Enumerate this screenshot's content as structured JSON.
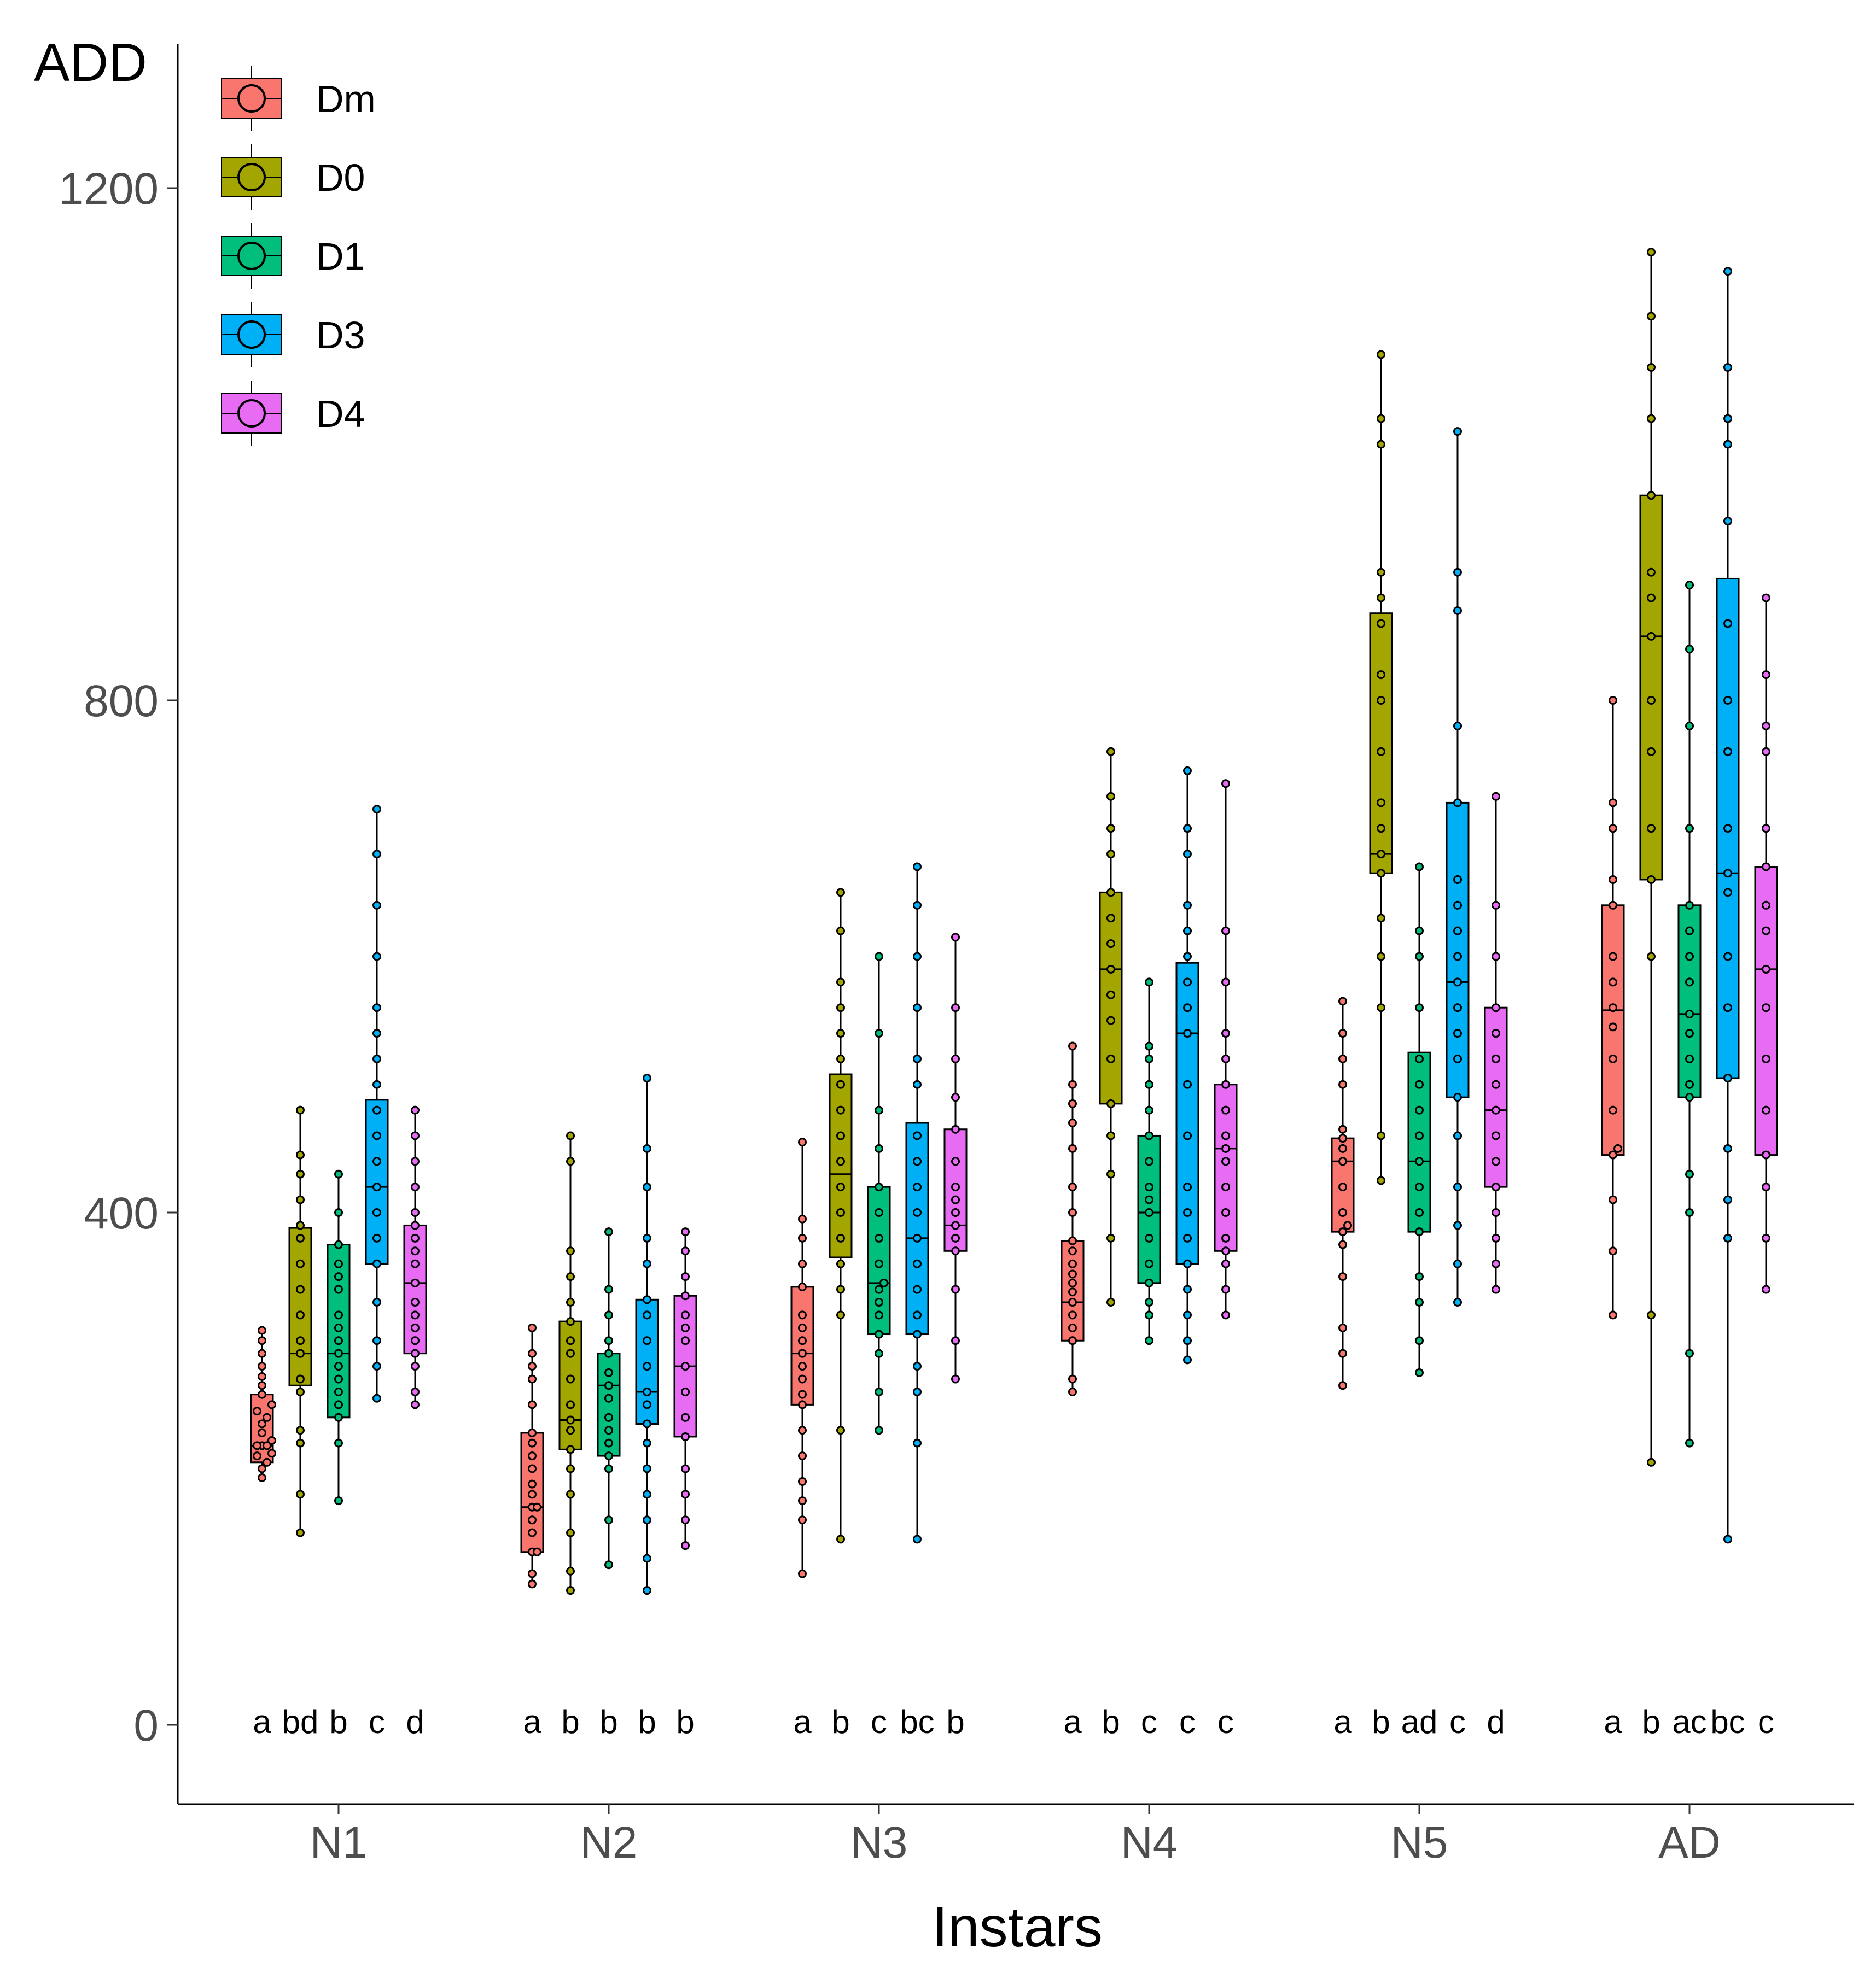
{
  "chart_data": {
    "type": "boxplot",
    "ylabel": "ADD",
    "xlabel": "Instars",
    "ylim": [
      -60,
      1310
    ],
    "yticks": [
      0,
      400,
      800,
      1200
    ],
    "categories": [
      "N1",
      "N2",
      "N3",
      "N4",
      "N5",
      "AD"
    ],
    "legend": {
      "position": "top-left",
      "entries": [
        "Dm",
        "D0",
        "D1",
        "D3",
        "D4"
      ]
    },
    "series": [
      {
        "name": "Dm",
        "color": "#F8766D",
        "boxes": [
          {
            "min": 193,
            "q1": 205,
            "median": 218,
            "q3": 258,
            "max": 308
          },
          {
            "min": 110,
            "q1": 135,
            "median": 170,
            "q3": 228,
            "max": 310
          },
          {
            "min": 118,
            "q1": 250,
            "median": 290,
            "q3": 342,
            "max": 455
          },
          {
            "min": 260,
            "q1": 300,
            "median": 330,
            "q3": 378,
            "max": 530
          },
          {
            "min": 265,
            "q1": 385,
            "median": 440,
            "q3": 458,
            "max": 565
          },
          {
            "min": 320,
            "q1": 445,
            "median": 558,
            "q3": 640,
            "max": 800
          }
        ],
        "points": [
          [
            193,
            200,
            205,
            210,
            212,
            218,
            218,
            218,
            222,
            228,
            235,
            240,
            245,
            250,
            258,
            265,
            272,
            280,
            290,
            300,
            308
          ],
          [
            110,
            118,
            135,
            135,
            150,
            160,
            170,
            170,
            180,
            188,
            200,
            210,
            220,
            228,
            250,
            270,
            280,
            290,
            310
          ],
          [
            118,
            160,
            175,
            190,
            210,
            230,
            250,
            258,
            270,
            280,
            290,
            300,
            310,
            320,
            342,
            360,
            380,
            395,
            455
          ],
          [
            260,
            270,
            300,
            310,
            320,
            330,
            338,
            345,
            352,
            360,
            370,
            378,
            400,
            420,
            450,
            470,
            485,
            500,
            530
          ],
          [
            265,
            290,
            310,
            350,
            375,
            385,
            390,
            400,
            420,
            440,
            450,
            458,
            465,
            500,
            520,
            540,
            565
          ],
          [
            320,
            370,
            410,
            445,
            450,
            480,
            520,
            545,
            560,
            580,
            600,
            640,
            660,
            700,
            720,
            800
          ]
        ]
      },
      {
        "name": "D0",
        "color": "#A3A500",
        "boxes": [
          {
            "min": 150,
            "q1": 265,
            "median": 290,
            "q3": 388,
            "max": 480
          },
          {
            "min": 105,
            "q1": 215,
            "median": 238,
            "q3": 315,
            "max": 460
          },
          {
            "min": 145,
            "q1": 365,
            "median": 430,
            "q3": 508,
            "max": 650
          },
          {
            "min": 330,
            "q1": 485,
            "median": 590,
            "q3": 650,
            "max": 760
          },
          {
            "min": 425,
            "q1": 665,
            "median": 680,
            "q3": 868,
            "max": 1070
          },
          {
            "min": 205,
            "q1": 660,
            "median": 850,
            "q3": 960,
            "max": 1150
          }
        ],
        "points": [
          [
            150,
            180,
            220,
            230,
            260,
            270,
            290,
            300,
            320,
            340,
            360,
            380,
            390,
            410,
            430,
            445,
            480
          ],
          [
            105,
            120,
            150,
            180,
            200,
            215,
            230,
            238,
            250,
            270,
            290,
            300,
            315,
            330,
            350,
            370,
            440,
            460
          ],
          [
            145,
            230,
            320,
            340,
            360,
            380,
            400,
            420,
            440,
            460,
            480,
            500,
            520,
            540,
            560,
            580,
            620,
            650
          ],
          [
            330,
            380,
            430,
            460,
            485,
            520,
            550,
            570,
            590,
            610,
            630,
            650,
            680,
            700,
            725,
            760
          ],
          [
            425,
            460,
            560,
            600,
            630,
            665,
            680,
            700,
            720,
            760,
            800,
            820,
            860,
            880,
            900,
            1000,
            1020,
            1070
          ],
          [
            205,
            320,
            600,
            660,
            700,
            760,
            800,
            850,
            880,
            900,
            960,
            1020,
            1060,
            1100,
            1150
          ]
        ]
      },
      {
        "name": "D1",
        "color": "#00BF7D",
        "boxes": [
          {
            "min": 175,
            "q1": 240,
            "median": 290,
            "q3": 375,
            "max": 430
          },
          {
            "min": 125,
            "q1": 210,
            "median": 265,
            "q3": 290,
            "max": 385
          },
          {
            "min": 230,
            "q1": 305,
            "median": 345,
            "q3": 420,
            "max": 600
          },
          {
            "min": 300,
            "q1": 345,
            "median": 400,
            "q3": 460,
            "max": 580
          },
          {
            "min": 275,
            "q1": 385,
            "median": 440,
            "q3": 525,
            "max": 670
          },
          {
            "min": 220,
            "q1": 490,
            "median": 555,
            "q3": 640,
            "max": 890
          }
        ],
        "points": [
          [
            175,
            220,
            240,
            250,
            260,
            270,
            280,
            290,
            300,
            310,
            320,
            340,
            350,
            360,
            375,
            400,
            430
          ],
          [
            125,
            160,
            200,
            210,
            220,
            230,
            240,
            255,
            265,
            275,
            290,
            300,
            320,
            340,
            385
          ],
          [
            230,
            260,
            290,
            305,
            320,
            330,
            340,
            345,
            360,
            380,
            400,
            420,
            450,
            480,
            540,
            600
          ],
          [
            300,
            320,
            330,
            345,
            360,
            380,
            400,
            410,
            420,
            440,
            460,
            480,
            500,
            520,
            530,
            580
          ],
          [
            275,
            300,
            330,
            350,
            385,
            400,
            420,
            440,
            460,
            480,
            500,
            520,
            560,
            600,
            620,
            670
          ],
          [
            220,
            290,
            400,
            430,
            490,
            500,
            520,
            540,
            555,
            580,
            600,
            620,
            640,
            700,
            780,
            840,
            890
          ]
        ]
      },
      {
        "name": "D3",
        "color": "#00B0F6",
        "boxes": [
          {
            "min": 255,
            "q1": 360,
            "median": 420,
            "q3": 488,
            "max": 715
          },
          {
            "min": 105,
            "q1": 235,
            "median": 260,
            "q3": 332,
            "max": 505
          },
          {
            "min": 145,
            "q1": 305,
            "median": 380,
            "q3": 470,
            "max": 670
          },
          {
            "min": 285,
            "q1": 360,
            "median": 540,
            "q3": 595,
            "max": 745
          },
          {
            "min": 330,
            "q1": 490,
            "median": 580,
            "q3": 720,
            "max": 1010
          },
          {
            "min": 145,
            "q1": 505,
            "median": 665,
            "q3": 895,
            "max": 1135
          }
        ],
        "points": [
          [
            255,
            280,
            300,
            330,
            360,
            380,
            400,
            420,
            440,
            460,
            480,
            500,
            520,
            540,
            560,
            600,
            640,
            680,
            715
          ],
          [
            105,
            130,
            160,
            180,
            200,
            220,
            235,
            250,
            260,
            280,
            300,
            320,
            332,
            360,
            380,
            420,
            450,
            505
          ],
          [
            145,
            220,
            260,
            280,
            305,
            320,
            340,
            360,
            380,
            400,
            420,
            440,
            460,
            500,
            520,
            560,
            600,
            640,
            670
          ],
          [
            285,
            300,
            320,
            340,
            360,
            380,
            400,
            420,
            460,
            500,
            540,
            560,
            580,
            600,
            620,
            640,
            680,
            700,
            745
          ],
          [
            330,
            360,
            390,
            420,
            460,
            490,
            520,
            540,
            560,
            580,
            600,
            620,
            640,
            660,
            720,
            780,
            870,
            900,
            1010
          ],
          [
            145,
            380,
            410,
            450,
            505,
            560,
            600,
            650,
            665,
            700,
            760,
            800,
            860,
            940,
            1000,
            1020,
            1060,
            1135
          ]
        ]
      },
      {
        "name": "D4",
        "color": "#E76BF3",
        "boxes": [
          {
            "min": 250,
            "q1": 290,
            "median": 345,
            "q3": 390,
            "max": 480
          },
          {
            "min": 140,
            "q1": 225,
            "median": 280,
            "q3": 335,
            "max": 385
          },
          {
            "min": 270,
            "q1": 370,
            "median": 390,
            "q3": 465,
            "max": 615
          },
          {
            "min": 320,
            "q1": 370,
            "median": 450,
            "q3": 500,
            "max": 735
          },
          {
            "min": 340,
            "q1": 420,
            "median": 480,
            "q3": 560,
            "max": 725
          },
          {
            "min": 340,
            "q1": 445,
            "median": 590,
            "q3": 670,
            "max": 880
          }
        ],
        "points": [
          [
            250,
            260,
            280,
            290,
            300,
            310,
            320,
            330,
            345,
            360,
            370,
            380,
            390,
            400,
            420,
            440,
            460,
            480
          ],
          [
            140,
            160,
            180,
            200,
            225,
            240,
            260,
            280,
            300,
            310,
            320,
            335,
            350,
            370,
            385
          ],
          [
            270,
            300,
            340,
            370,
            380,
            390,
            400,
            410,
            420,
            440,
            465,
            490,
            520,
            560,
            615
          ],
          [
            320,
            340,
            360,
            370,
            380,
            400,
            420,
            440,
            450,
            460,
            480,
            500,
            520,
            540,
            580,
            620,
            735
          ],
          [
            340,
            360,
            380,
            400,
            420,
            440,
            460,
            480,
            500,
            520,
            540,
            560,
            600,
            640,
            725
          ],
          [
            340,
            380,
            420,
            445,
            480,
            520,
            560,
            590,
            620,
            640,
            670,
            700,
            760,
            780,
            820,
            880
          ]
        ]
      }
    ],
    "significance_letters": [
      [
        "a",
        "bd",
        "b",
        "c",
        "d"
      ],
      [
        "a",
        "b",
        "b",
        "b",
        "b"
      ],
      [
        "a",
        "b",
        "c",
        "bc",
        "b"
      ],
      [
        "a",
        "b",
        "c",
        "c",
        "c"
      ],
      [
        "a",
        "b",
        "ad",
        "c",
        "d"
      ],
      [
        "a",
        "b",
        "ac",
        "bc",
        "c"
      ]
    ]
  }
}
